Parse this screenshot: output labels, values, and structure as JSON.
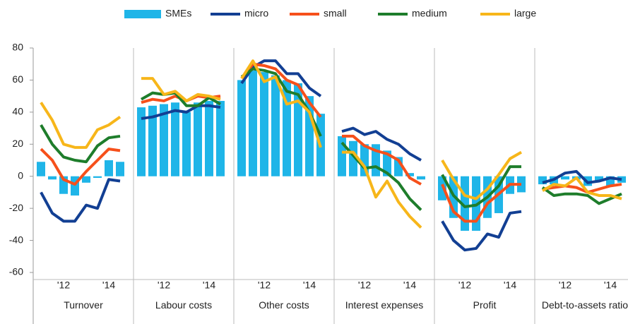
{
  "chart_data": {
    "type": "combo",
    "panels": [
      "Turnover",
      "Labour costs",
      "Other costs",
      "Interest expenses",
      "Profit",
      "Debt-to-assets ratio"
    ],
    "categories": [
      null,
      null,
      "'12",
      null,
      null,
      null,
      "'14",
      null
    ],
    "ylim": [
      -60,
      80
    ],
    "yticks": [
      -60,
      -40,
      -20,
      0,
      20,
      40,
      60,
      80
    ],
    "series": [
      {
        "name": "SMEs",
        "color": "#1fb5e8",
        "type": "bar",
        "values": [
          [
            9,
            -2,
            -11,
            -12,
            -4,
            -1,
            10,
            9
          ],
          [
            43,
            44,
            45,
            46,
            40,
            46,
            47,
            47
          ],
          [
            60,
            66,
            65,
            63,
            60,
            58,
            50,
            39
          ],
          [
            25,
            22,
            20,
            20,
            16,
            12,
            2,
            -2
          ],
          [
            -15,
            -26,
            -34,
            -34,
            -26,
            -23,
            -11,
            -10
          ],
          [
            -5,
            -5,
            -2,
            -2,
            -6,
            -3,
            -6,
            -4
          ]
        ]
      },
      {
        "name": "micro",
        "color": "#123f93",
        "type": "line",
        "values": [
          [
            -10,
            -23,
            -28,
            -28,
            -18,
            -20,
            -2,
            -3
          ],
          [
            36,
            37,
            39,
            41,
            40,
            44,
            44,
            43
          ],
          [
            58,
            68,
            72,
            72,
            64,
            64,
            55,
            50
          ],
          [
            28,
            30,
            26,
            28,
            23,
            20,
            14,
            10
          ],
          [
            -28,
            -40,
            -46,
            -45,
            -36,
            -38,
            -23,
            -22
          ],
          [
            -4,
            -2,
            2,
            3,
            -4,
            -3,
            -1,
            -2
          ]
        ]
      },
      {
        "name": "small",
        "color": "#f6501b",
        "type": "line",
        "values": [
          [
            17,
            10,
            -2,
            -5,
            3,
            10,
            17,
            16
          ],
          [
            46,
            48,
            47,
            50,
            47,
            50,
            49,
            50
          ],
          [
            61,
            70,
            69,
            67,
            60,
            57,
            46,
            37
          ],
          [
            25,
            25,
            19,
            16,
            14,
            10,
            -1,
            -5
          ],
          [
            -5,
            -22,
            -28,
            -28,
            -17,
            -11,
            -5,
            -5
          ],
          [
            -8,
            -7,
            -6,
            -7,
            -10,
            -8,
            -6,
            -5
          ]
        ]
      },
      {
        "name": "medium",
        "color": "#1e7d2b",
        "type": "line",
        "values": [
          [
            32,
            20,
            12,
            10,
            9,
            19,
            24,
            25
          ],
          [
            48,
            52,
            51,
            52,
            44,
            44,
            49,
            45
          ],
          [
            62,
            67,
            66,
            64,
            53,
            51,
            40,
            25
          ],
          [
            21,
            13,
            5,
            6,
            2,
            -4,
            -14,
            -21
          ],
          [
            1,
            -12,
            -19,
            -18,
            -13,
            -6,
            6,
            6
          ],
          [
            -7,
            -12,
            -11,
            -11,
            -12,
            -17,
            -14,
            -11
          ]
        ]
      },
      {
        "name": "large",
        "color": "#f7b61a",
        "type": "line",
        "values": [
          [
            46,
            35,
            20,
            18,
            18,
            29,
            32,
            37
          ],
          [
            61,
            61,
            51,
            53,
            47,
            51,
            50,
            48
          ],
          [
            61,
            72,
            59,
            62,
            45,
            47,
            40,
            18
          ],
          [
            15,
            15,
            6,
            -13,
            -3,
            -16,
            -25,
            -32
          ],
          [
            10,
            -2,
            -12,
            -14,
            -8,
            1,
            11,
            15
          ],
          [
            -9,
            -5,
            -6,
            -1,
            -10,
            -12,
            -12,
            -14
          ]
        ]
      }
    ]
  }
}
